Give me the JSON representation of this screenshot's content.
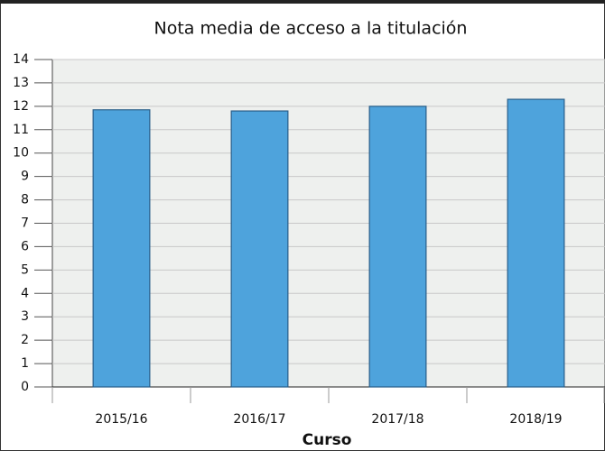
{
  "chart_data": {
    "type": "bar",
    "title": "Nota media de acceso a la titulación",
    "x_label": "Curso",
    "categories": [
      "2015/16",
      "2016/17",
      "2017/18",
      "2018/19"
    ],
    "values": [
      11.85,
      11.8,
      12.0,
      12.3
    ],
    "color": "#4ea3dc",
    "ylim": [
      0,
      14
    ],
    "yticks": [
      0,
      1,
      2,
      3,
      4,
      5,
      6,
      7,
      8,
      9,
      10,
      11,
      12,
      13,
      14
    ],
    "grid": true
  }
}
